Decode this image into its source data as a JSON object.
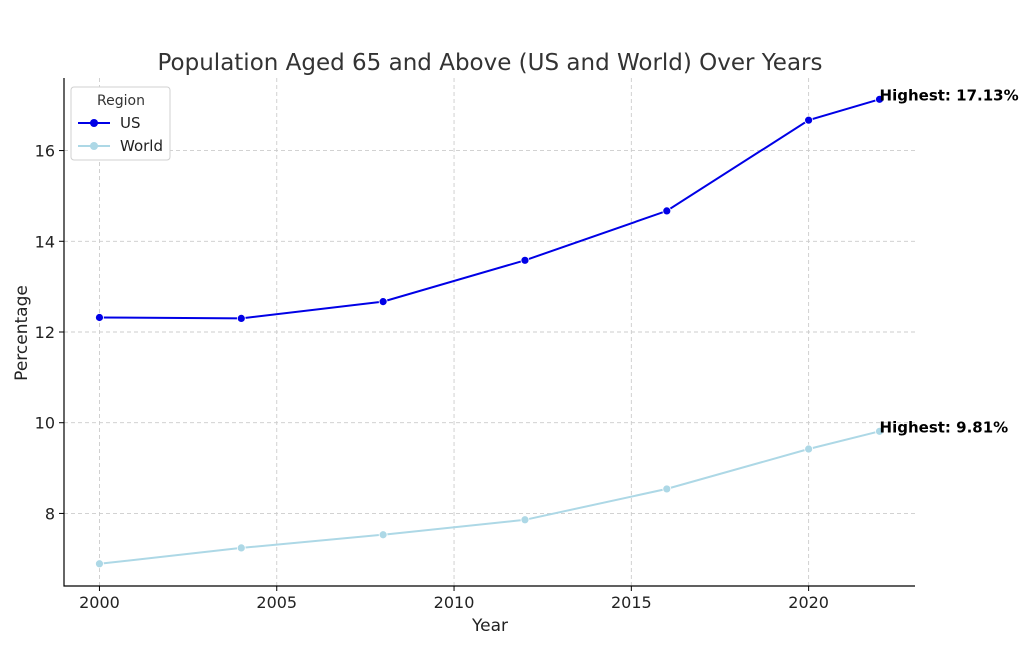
{
  "chart_data": {
    "type": "line",
    "title": "Population Aged 65 and Above (US and World) Over Years",
    "xlabel": "Year",
    "ylabel": "Percentage",
    "xlim": [
      1999,
      2023
    ],
    "ylim": [
      6.4,
      17.6
    ],
    "xticks": [
      2000,
      2005,
      2010,
      2015,
      2020
    ],
    "yticks": [
      8,
      10,
      12,
      14,
      16
    ],
    "grid": true,
    "legend": {
      "title": "Region",
      "position": "top-left"
    },
    "x": [
      2000,
      2004,
      2008,
      2012,
      2016,
      2020,
      2022
    ],
    "series": [
      {
        "name": "US",
        "color": "#0000e6",
        "values": [
          12.32,
          12.3,
          12.67,
          13.58,
          14.67,
          16.67,
          17.13
        ]
      },
      {
        "name": "World",
        "color": "#add8e6",
        "values": [
          6.89,
          7.24,
          7.53,
          7.86,
          8.54,
          9.42,
          9.81
        ]
      }
    ],
    "annotations": [
      {
        "text": "Highest: 17.13%",
        "x": 2022,
        "y": 17.13
      },
      {
        "text": "Highest: 9.81%",
        "x": 2022,
        "y": 9.81
      }
    ]
  }
}
